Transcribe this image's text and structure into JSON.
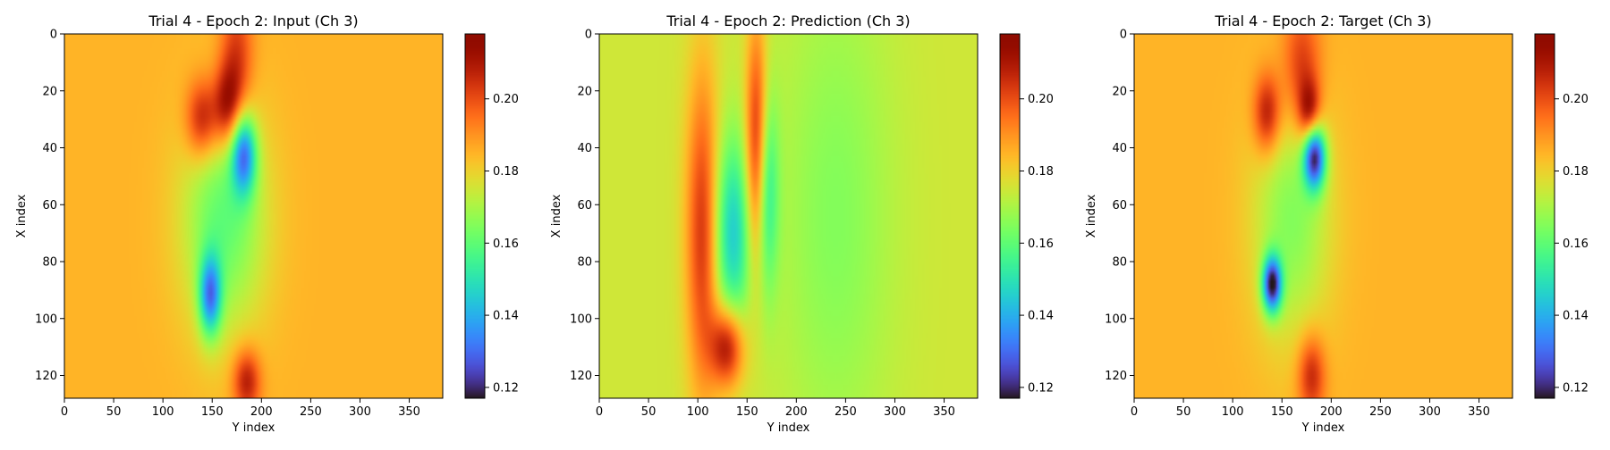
{
  "chart_data": [
    {
      "type": "heatmap",
      "title": "Trial 4 - Epoch 2: Input (Ch 3)",
      "xlabel": "Y index",
      "ylabel": "X index",
      "xlim": [
        0,
        384
      ],
      "ylim": [
        128,
        0
      ],
      "xticks": [
        0,
        50,
        100,
        150,
        200,
        250,
        300,
        350
      ],
      "yticks": [
        0,
        20,
        40,
        60,
        80,
        100,
        120
      ],
      "colorbar": {
        "min": 0.117,
        "max": 0.218,
        "ticks": [
          0.12,
          0.14,
          0.16,
          0.18,
          0.2
        ],
        "tick_labels": [
          "0.12",
          "0.14",
          "0.16",
          "0.18",
          "0.20"
        ],
        "colormap": "turbo"
      },
      "background_value": 0.185,
      "features": [
        {
          "kind": "high",
          "y_center": 175,
          "x_center": 10,
          "value": 0.205,
          "sy": 12,
          "sx": 18
        },
        {
          "kind": "high",
          "y_center": 140,
          "x_center": 30,
          "value": 0.212,
          "sy": 12,
          "sx": 10
        },
        {
          "kind": "high",
          "y_center": 165,
          "x_center": 25,
          "value": 0.21,
          "sy": 10,
          "sx": 10
        },
        {
          "kind": "low",
          "y_center": 182,
          "x_center": 42,
          "value": 0.14,
          "sy": 9,
          "sx": 10
        },
        {
          "kind": "low",
          "y_center": 162,
          "x_center": 65,
          "value": 0.16,
          "sy": 30,
          "sx": 28
        },
        {
          "kind": "low",
          "y_center": 148,
          "x_center": 92,
          "value": 0.142,
          "sy": 8,
          "sx": 10
        },
        {
          "kind": "high",
          "y_center": 185,
          "x_center": 122,
          "value": 0.21,
          "sy": 10,
          "sx": 8
        }
      ]
    },
    {
      "type": "heatmap",
      "title": "Trial 4 - Epoch 2: Prediction (Ch 3)",
      "xlabel": "Y index",
      "ylabel": "X index",
      "xlim": [
        0,
        384
      ],
      "ylim": [
        128,
        0
      ],
      "xticks": [
        0,
        50,
        100,
        150,
        200,
        250,
        300,
        350
      ],
      "yticks": [
        0,
        20,
        40,
        60,
        80,
        100,
        120
      ],
      "colorbar": {
        "min": 0.117,
        "max": 0.218,
        "ticks": [
          0.12,
          0.14,
          0.16,
          0.18,
          0.2
        ],
        "tick_labels": [
          "0.12",
          "0.14",
          "0.16",
          "0.18",
          "0.20"
        ],
        "colormap": "turbo"
      },
      "background_value": 0.175,
      "features": [
        {
          "kind": "high",
          "y_center": 105,
          "x_center": 70,
          "value": 0.205,
          "sy": 12,
          "sx": 40
        },
        {
          "kind": "high",
          "y_center": 160,
          "x_center": 40,
          "value": 0.21,
          "sy": 8,
          "sx": 30
        },
        {
          "kind": "high",
          "y_center": 130,
          "x_center": 110,
          "value": 0.212,
          "sy": 12,
          "sx": 10
        },
        {
          "kind": "low",
          "y_center": 135,
          "x_center": 70,
          "value": 0.145,
          "sy": 14,
          "sx": 24
        },
        {
          "kind": "low",
          "y_center": 170,
          "x_center": 55,
          "value": 0.15,
          "sy": 8,
          "sx": 25
        },
        {
          "kind": "low",
          "y_center": 240,
          "x_center": 64,
          "value": 0.165,
          "sy": 40,
          "sx": 60
        }
      ]
    },
    {
      "type": "heatmap",
      "title": "Trial 4 - Epoch 2: Target (Ch 3)",
      "xlabel": "Y index",
      "ylabel": "X index",
      "xlim": [
        0,
        384
      ],
      "ylim": [
        128,
        0
      ],
      "xticks": [
        0,
        50,
        100,
        150,
        200,
        250,
        300,
        350
      ],
      "yticks": [
        0,
        20,
        40,
        60,
        80,
        100,
        120
      ],
      "colorbar": {
        "min": 0.117,
        "max": 0.218,
        "ticks": [
          0.12,
          0.14,
          0.16,
          0.18,
          0.2
        ],
        "tick_labels": [
          "0.12",
          "0.14",
          "0.16",
          "0.18",
          "0.20"
        ],
        "colormap": "turbo"
      },
      "background_value": 0.185,
      "features": [
        {
          "kind": "high",
          "y_center": 170,
          "x_center": 12,
          "value": 0.205,
          "sy": 14,
          "sx": 16
        },
        {
          "kind": "high",
          "y_center": 135,
          "x_center": 28,
          "value": 0.212,
          "sy": 10,
          "sx": 10
        },
        {
          "kind": "high",
          "y_center": 178,
          "x_center": 28,
          "value": 0.212,
          "sy": 8,
          "sx": 8
        },
        {
          "kind": "low",
          "y_center": 183,
          "x_center": 43,
          "value": 0.125,
          "sy": 8,
          "sx": 8
        },
        {
          "kind": "low",
          "y_center": 160,
          "x_center": 65,
          "value": 0.165,
          "sy": 28,
          "sx": 30
        },
        {
          "kind": "low",
          "y_center": 140,
          "x_center": 88,
          "value": 0.125,
          "sy": 7,
          "sx": 7
        },
        {
          "kind": "high",
          "y_center": 180,
          "x_center": 120,
          "value": 0.208,
          "sy": 10,
          "sx": 10
        }
      ]
    }
  ]
}
